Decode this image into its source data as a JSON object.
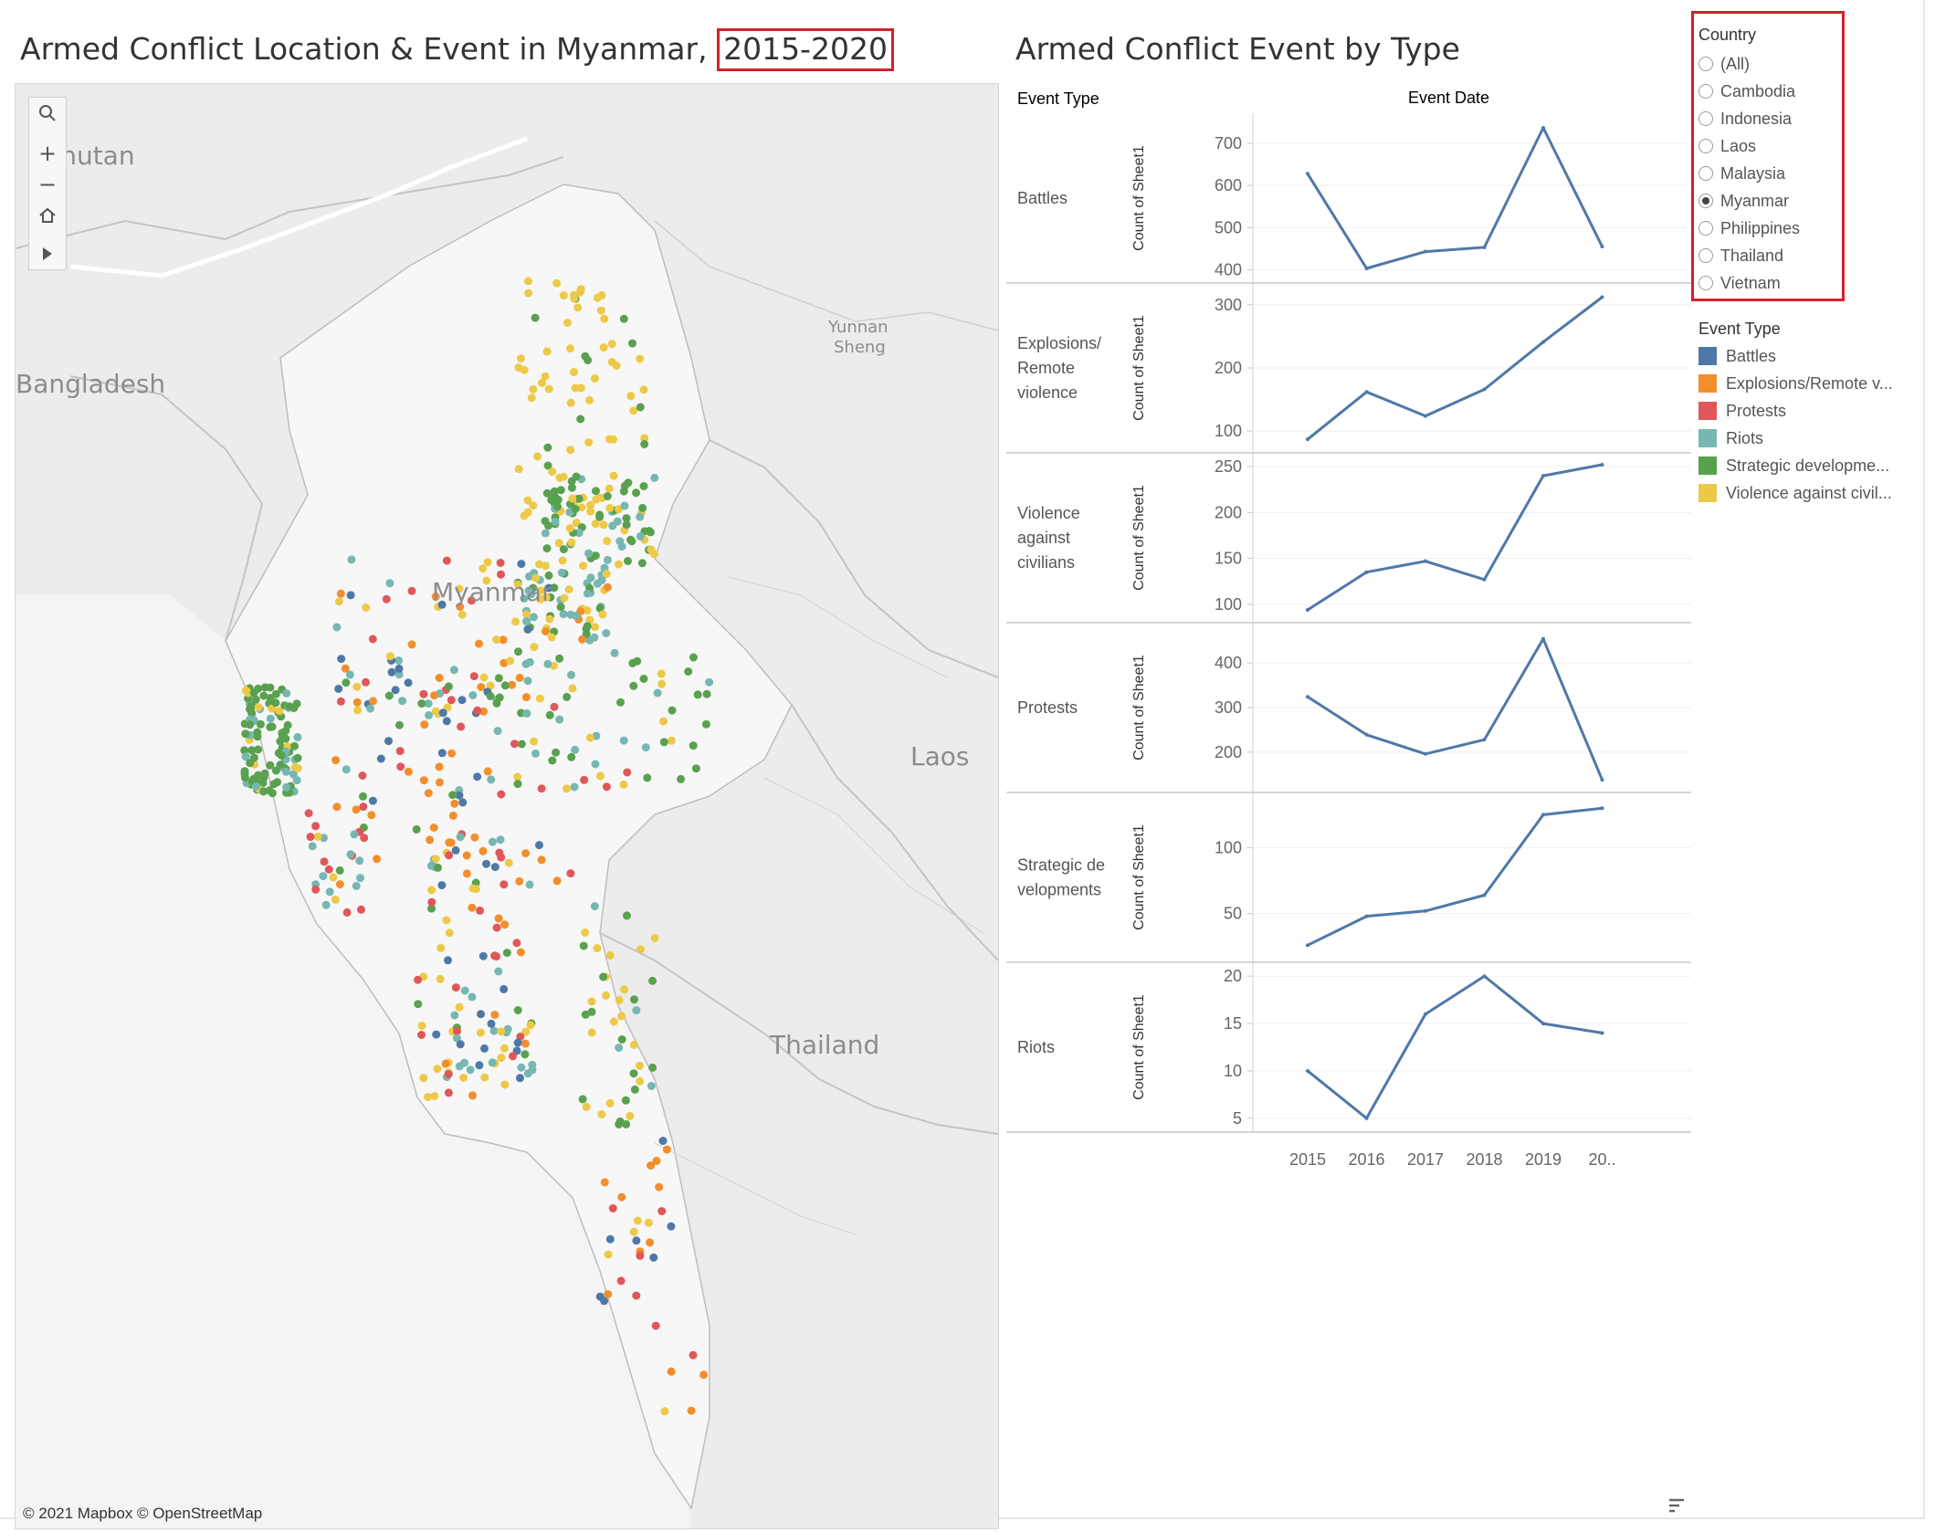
{
  "map": {
    "title_prefix": "Armed Conflict Location & Event in Myanmar,",
    "title_highlight": "2015-2020",
    "labels": {
      "bhutan": "Bhutan",
      "bangladesh": "Bangladesh",
      "yunnan_line1": "Yunnan",
      "yunnan_line2": "Sheng",
      "myanmar": "Myanmar",
      "laos": "Laos",
      "thailand": "Thailand"
    },
    "attribution": "© 2021 Mapbox  © OpenStreetMap",
    "toolbar": {
      "search_icon": "search-icon",
      "zoom_in": "+",
      "zoom_out": "−",
      "home_icon": "home-icon",
      "expand_icon": "play-icon"
    }
  },
  "chart": {
    "title": "Armed Conflict Event by Type",
    "col_header_left": "Event Type",
    "col_header_right": "Event Date",
    "y_axis_label": "Count of Sheet1"
  },
  "chart_data": {
    "type": "line",
    "x": [
      "2015",
      "2016",
      "2017",
      "2018",
      "2019",
      "20.."
    ],
    "line_color": "#4e79a7",
    "panels": [
      {
        "name": "Battles",
        "label_lines": [
          "Battles"
        ],
        "values": [
          628,
          403,
          443,
          453,
          737,
          455
        ],
        "ylim": [
          390,
          750
        ],
        "ticks": [
          400,
          500,
          600,
          700
        ]
      },
      {
        "name": "Explosions/Remote violence",
        "label_lines": [
          "Explosions/",
          "Remote",
          "violence"
        ],
        "values": [
          87,
          162,
          124,
          166,
          241,
          312
        ],
        "ylim": [
          80,
          320
        ],
        "ticks": [
          100,
          200,
          300
        ]
      },
      {
        "name": "Violence against civilians",
        "label_lines": [
          "Violence",
          "against",
          "civilians"
        ],
        "values": [
          94,
          135,
          147,
          127,
          240,
          252
        ],
        "ylim": [
          90,
          255
        ],
        "ticks": [
          100,
          150,
          200,
          250
        ]
      },
      {
        "name": "Protests",
        "label_lines": [
          "Protests"
        ],
        "values": [
          324,
          239,
          196,
          228,
          454,
          138
        ],
        "ylim": [
          130,
          470
        ],
        "ticks": [
          200,
          300,
          400
        ]
      },
      {
        "name": "Strategic developments",
        "label_lines": [
          "Strategic de",
          "velopments"
        ],
        "values": [
          26,
          48,
          52,
          64,
          125,
          130
        ],
        "ylim": [
          20,
          135
        ],
        "ticks": [
          50,
          100
        ]
      },
      {
        "name": "Riots",
        "label_lines": [
          "Riots"
        ],
        "values": [
          10,
          5,
          16,
          20,
          15,
          14
        ],
        "ylim": [
          4.5,
          20.5
        ],
        "ticks": [
          5,
          10,
          15,
          20
        ]
      }
    ]
  },
  "country_filter": {
    "title": "Country",
    "options": [
      "(All)",
      "Cambodia",
      "Indonesia",
      "Laos",
      "Malaysia",
      "Myanmar",
      "Philippines",
      "Thailand",
      "Vietnam"
    ],
    "selected": "Myanmar"
  },
  "legend": {
    "title": "Event Type",
    "items": [
      {
        "label": "Battles",
        "color": "#4e79a7"
      },
      {
        "label": "Explosions/Remote v...",
        "color": "#f28e2b"
      },
      {
        "label": "Protests",
        "color": "#e15759"
      },
      {
        "label": "Riots",
        "color": "#76b7b2"
      },
      {
        "label": "Strategic developme...",
        "color": "#59a14f"
      },
      {
        "label": "Violence against civil...",
        "color": "#edc948"
      }
    ]
  }
}
